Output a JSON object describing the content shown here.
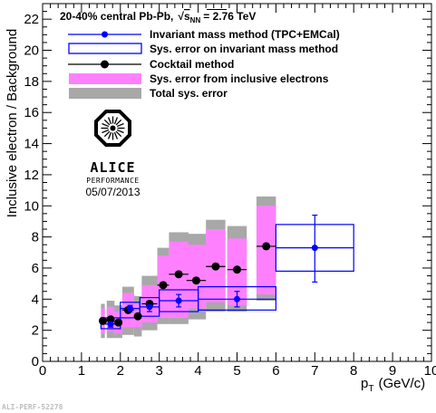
{
  "chart_data": {
    "type": "scatter",
    "header": {
      "selection": "20-40% central Pb-Pb,",
      "energy_symbol": "√",
      "energy_var": "s",
      "energy_sub": "NN",
      "energy_value": "= 2.76 TeV"
    },
    "xlabel": {
      "main": "p",
      "sub": "T",
      "unit": "(GeV/c)"
    },
    "ylabel": "Inclusive electron / Background",
    "xlim": [
      0,
      10
    ],
    "ylim": [
      0,
      23
    ],
    "x_ticks": [
      {
        "v": 0,
        "label": "0"
      },
      {
        "v": 1,
        "label": "1"
      },
      {
        "v": 2,
        "label": "2"
      },
      {
        "v": 3,
        "label": "3"
      },
      {
        "v": 4,
        "label": "4"
      },
      {
        "v": 5,
        "label": "5"
      },
      {
        "v": 6,
        "label": "6"
      },
      {
        "v": 7,
        "label": "7"
      },
      {
        "v": 8,
        "label": "8"
      },
      {
        "v": 9,
        "label": "9"
      },
      {
        "v": 10,
        "label": "10"
      }
    ],
    "y_ticks": [
      {
        "v": 0,
        "label": "0"
      },
      {
        "v": 2,
        "label": "2"
      },
      {
        "v": 4,
        "label": "4"
      },
      {
        "v": 6,
        "label": "6"
      },
      {
        "v": 8,
        "label": "8"
      },
      {
        "v": 10,
        "label": "10"
      },
      {
        "v": 12,
        "label": "12"
      },
      {
        "v": 14,
        "label": "14"
      },
      {
        "v": 16,
        "label": "16"
      },
      {
        "v": 18,
        "label": "18"
      },
      {
        "v": 20,
        "label": "20"
      },
      {
        "v": 22,
        "label": "22"
      }
    ],
    "legend": [
      {
        "key": "inv_mass",
        "label": "Invariant mass method (TPC+EMCal)"
      },
      {
        "key": "inv_mass_sys",
        "label": "Sys. error on invariant mass method"
      },
      {
        "key": "cocktail",
        "label": "Cocktail method"
      },
      {
        "key": "incl_sys",
        "label": "Sys. error from inclusive electrons"
      },
      {
        "key": "total_sys",
        "label": "Total sys. error"
      }
    ],
    "colors": {
      "inv_mass": "#0000ff",
      "cocktail": "#000000",
      "incl_sys": "#ff80ff",
      "total_sys": "#a8a8a8"
    },
    "series": [
      {
        "key": "cocktail",
        "x": [
          1.55,
          1.75,
          1.95,
          2.2,
          2.45,
          2.75,
          3.1,
          3.5,
          3.95,
          4.45,
          5.0,
          5.75
        ],
        "y": [
          2.6,
          2.7,
          2.5,
          3.3,
          2.9,
          3.7,
          4.9,
          5.6,
          5.2,
          6.1,
          5.9,
          7.4
        ],
        "xerr": [
          0.05,
          0.1,
          0.1,
          0.15,
          0.1,
          0.2,
          0.15,
          0.25,
          0.25,
          0.25,
          0.25,
          0.25
        ],
        "total_sys_low": [
          1.5,
          1.5,
          1.5,
          1.7,
          1.6,
          2.0,
          2.4,
          2.4,
          2.7,
          3.2,
          3.2,
          3.9
        ],
        "total_sys_high": [
          3.7,
          3.9,
          3.6,
          4.8,
          4.2,
          5.5,
          7.3,
          8.3,
          8.2,
          9.1,
          8.7,
          10.6
        ],
        "incl_sys_low": [
          1.8,
          1.9,
          1.8,
          2.2,
          2.2,
          2.5,
          2.8,
          2.8,
          3.4,
          3.8,
          3.6,
          4.3
        ],
        "incl_sys_high": [
          3.4,
          3.5,
          3.2,
          4.4,
          3.7,
          4.9,
          6.8,
          7.7,
          7.5,
          8.5,
          7.9,
          10.0
        ]
      },
      {
        "key": "inv_mass",
        "x": [
          1.75,
          2.25,
          2.75,
          3.5,
          5.0,
          7.0
        ],
        "y": [
          2.4,
          3.4,
          3.5,
          3.9,
          4.0,
          7.3
        ],
        "xerr": [
          0.25,
          0.25,
          0.25,
          0.5,
          1.0,
          1.0
        ],
        "stat_low": [
          2.2,
          3.2,
          3.2,
          3.5,
          3.5,
          5.1
        ],
        "stat_high": [
          2.6,
          3.6,
          3.8,
          4.3,
          4.5,
          9.4
        ],
        "sys_low": [
          2.1,
          2.8,
          2.9,
          3.2,
          3.3,
          5.8
        ],
        "sys_high": [
          2.8,
          3.8,
          4.1,
          4.6,
          4.8,
          8.8
        ]
      }
    ],
    "logo": {
      "text": "ALICE",
      "subtext": "PERFORMANCE",
      "date": "05/07/2013"
    },
    "figure_id": "ALI-PERF-52278"
  }
}
